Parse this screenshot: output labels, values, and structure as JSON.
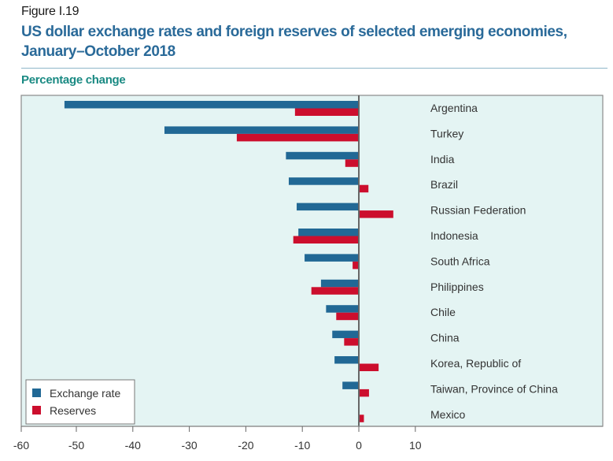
{
  "figure_label": "Figure I.19",
  "title_line1": "US dollar exchange rates and foreign reserves of selected emerging economies,",
  "title_line2": "January–October 2018",
  "subtitle": "Percentage change",
  "colors": {
    "exchange_rate": "#216895",
    "reserves": "#cc0e2d",
    "plot_bg": "#e4f4f3",
    "title": "#2a6a99",
    "subtitle": "#1a8a83"
  },
  "chart_data": {
    "type": "bar",
    "orientation": "horizontal",
    "title": "US dollar exchange rates and foreign reserves of selected emerging economies, January–October 2018",
    "xlabel": "",
    "ylabel": "Percentage change",
    "xlim": [
      -60,
      20
    ],
    "xticks": [
      -60,
      -50,
      -40,
      -30,
      -20,
      -10,
      0,
      10
    ],
    "grid": false,
    "legend_position": "bottom-left",
    "categories": [
      "Argentina",
      "Turkey",
      "India",
      "Brazil",
      "Russian Federation",
      "Indonesia",
      "South Africa",
      "Philippines",
      "Chile",
      "China",
      "Korea, Republic of",
      "Taiwan, Province of China",
      "Mexico"
    ],
    "series": [
      {
        "name": "Exchange rate",
        "values": [
          -52.1,
          -34.4,
          -12.9,
          -12.4,
          -11.0,
          -10.7,
          -9.6,
          -6.7,
          -5.8,
          -4.7,
          -4.3,
          -2.9,
          0.0
        ]
      },
      {
        "name": "Reserves",
        "values": [
          -11.3,
          -21.6,
          -2.4,
          1.7,
          6.1,
          -11.6,
          -1.1,
          -8.4,
          -4.0,
          -2.6,
          3.5,
          1.8,
          0.9
        ]
      }
    ]
  }
}
